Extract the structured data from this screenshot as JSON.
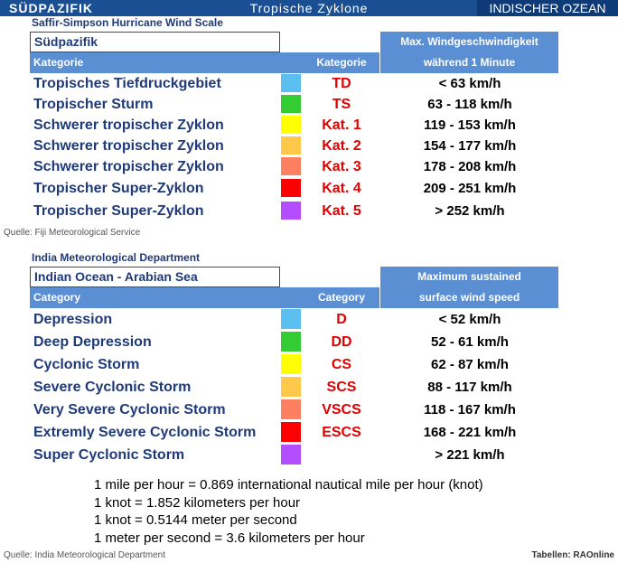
{
  "header": {
    "left": "SÜDPAZIFIK",
    "center": "Tropische Zyklone",
    "right": "INDISCHER OZEAN"
  },
  "sections": [
    {
      "scale": "Saffir-Simpson Hurricane Wind Scale",
      "region": "Südpazifik",
      "col1": "Kategorie",
      "col2": "Kategorie",
      "col3": [
        "Max. Windgeschwindigkeit",
        "während 1 Minute"
      ],
      "rows": [
        {
          "name": "Tropisches Tiefdruckgebiet",
          "color": "#5bc0f0",
          "code": "TD",
          "speed": "< 63 km/h"
        },
        {
          "name": "Tropischer Sturm",
          "color": "#33cc33",
          "code": "TS",
          "speed": "63 - 118 km/h"
        },
        {
          "name": "Schwerer tropischer Zyklon",
          "color": "#ffff00",
          "code": "Kat. 1",
          "speed": "119 - 153 km/h"
        },
        {
          "name": "Schwerer tropischer Zyklon",
          "color": "#ffc84a",
          "code": "Kat. 2",
          "speed": "154 - 177 km/h"
        },
        {
          "name": "Schwerer tropischer Zyklon",
          "color": "#ff8060",
          "code": "Kat. 3",
          "speed": "178 - 208 km/h"
        },
        {
          "name": "Tropischer Super-Zyklon",
          "color": "#ff0000",
          "code": "Kat. 4",
          "speed": "209 - 251 km/h"
        },
        {
          "name": "Tropischer Super-Zyklon",
          "color": "#b44cff",
          "code": "Kat. 5",
          "speed": "> 252 km/h"
        }
      ],
      "source": "Quelle: Fiji Meteorological Service"
    },
    {
      "scale": "India Meteorological Department",
      "region": "Indian Ocean - Arabian Sea",
      "col1": "Category",
      "col2": "Category",
      "col3": [
        "Maximum sustained",
        "surface wind speed"
      ],
      "rows": [
        {
          "name": "Depression",
          "color": "#5bc0f0",
          "code": "D",
          "speed": "< 52 km/h"
        },
        {
          "name": "Deep Depression",
          "color": "#33cc33",
          "code": "DD",
          "speed": "52 - 61 km/h"
        },
        {
          "name": "Cyclonic Storm",
          "color": "#ffff00",
          "code": "CS",
          "speed": "62 - 87 km/h"
        },
        {
          "name": "Severe Cyclonic Storm",
          "color": "#ffc84a",
          "code": "SCS",
          "speed": "88 - 117 km/h"
        },
        {
          "name": "Very Severe Cyclonic Storm",
          "color": "#ff8060",
          "code": "VSCS",
          "speed": "118 - 167 km/h"
        },
        {
          "name": "Extremly Severe Cyclonic Storm",
          "color": "#ff0000",
          "code": "ESCS",
          "speed": "168 - 221 km/h"
        },
        {
          "name": "Super Cyclonic Storm",
          "color": "#b44cff",
          "code": null,
          "speed": "> 221 km/h"
        }
      ],
      "source": "Quelle: India Meteorological Department"
    }
  ],
  "notes": [
    "1 mile per hour = 0.869 international nautical mile per hour (knot)",
    "1 knot = 1.852 kilometers per hour",
    "1 knot = 0.5144 meter per second",
    "1 meter per second = 3.6 kilometers per hour"
  ],
  "credit": "Tabellen: RAOnline"
}
